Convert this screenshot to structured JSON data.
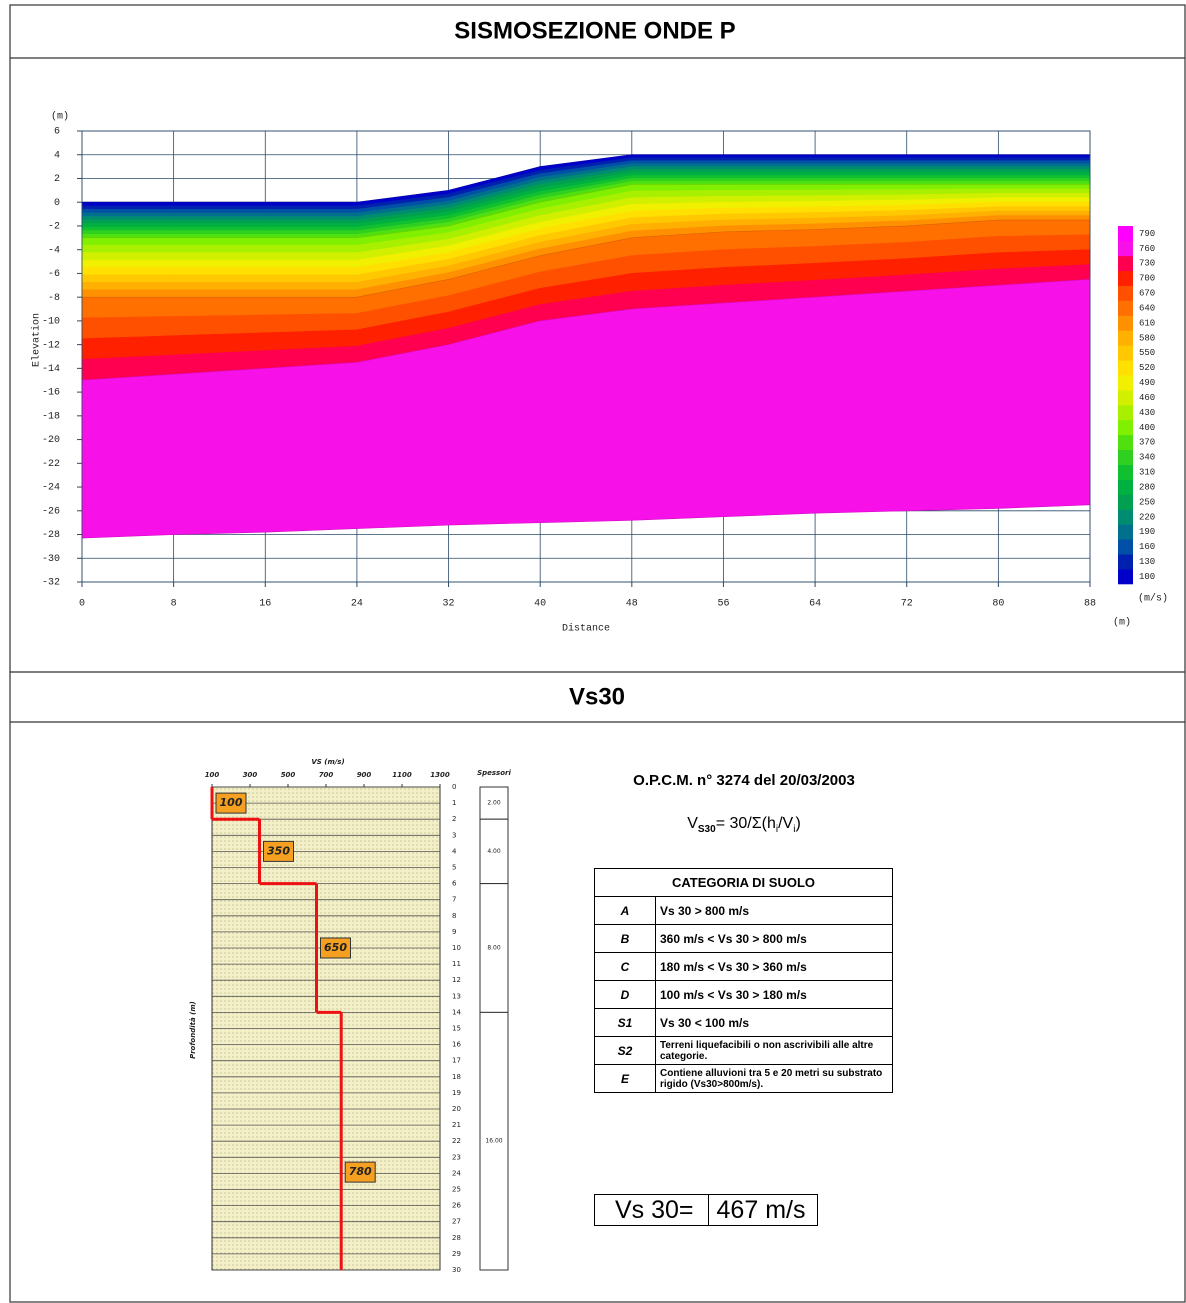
{
  "header": {
    "title": "SISMOSEZIONE ONDE P"
  },
  "section2": {
    "title": "Vs30"
  },
  "chart_data": [
    {
      "type": "section",
      "x_label": "Distance",
      "y_label": "Elevation",
      "y_unit": "(m)",
      "x_unit": "(m)",
      "colorbar_unit": "(m/s)",
      "x": [
        0,
        8,
        16,
        24,
        32,
        40,
        48,
        56,
        64,
        72,
        80,
        88
      ],
      "contours": [
        {
          "value": 100,
          "y": [
            0,
            0,
            0,
            0,
            1,
            3,
            4,
            4,
            4,
            4,
            4,
            4
          ]
        },
        {
          "value": 400,
          "y": [
            -3,
            -3,
            -3,
            -3,
            -2,
            0,
            1.5,
            1.5,
            1.5,
            1.5,
            1.5,
            1.5
          ]
        },
        {
          "value": 640,
          "y": [
            -8,
            -8,
            -8,
            -8,
            -6.5,
            -4.5,
            -3,
            -2.5,
            -2.3,
            -2,
            -1.5,
            -1.5
          ]
        },
        {
          "value": 760,
          "y": [
            -15,
            -14.5,
            -14,
            -13.5,
            -12,
            -10,
            -9,
            -8.5,
            -8,
            -7.5,
            -7,
            -6.5
          ]
        },
        {
          "value": 790,
          "y": [
            -28.3,
            -28,
            -27.8,
            -27.5,
            -27.2,
            -27,
            -26.8,
            -26.5,
            -26.2,
            -26,
            -25.8,
            -25.5
          ]
        }
      ],
      "xlim": [
        0,
        88
      ],
      "xticks": [
        0,
        8,
        16,
        24,
        32,
        40,
        48,
        56,
        64,
        72,
        80,
        88
      ],
      "ylim": [
        -32,
        6
      ],
      "yticks": [
        -32,
        -30,
        -28,
        -26,
        -24,
        -22,
        -20,
        -18,
        -16,
        -14,
        -12,
        -10,
        -8,
        -6,
        -4,
        -2,
        0,
        2,
        4,
        6
      ],
      "grid": true,
      "colorbar_ticks": [
        100,
        130,
        160,
        190,
        220,
        250,
        280,
        310,
        340,
        370,
        400,
        430,
        460,
        490,
        520,
        550,
        580,
        610,
        640,
        670,
        700,
        730,
        760,
        790
      ],
      "colorbar_colors": [
        "#0000c8",
        "#0020b0",
        "#0050a8",
        "#00708c",
        "#008c70",
        "#00a050",
        "#00b040",
        "#10c030",
        "#30d020",
        "#50e010",
        "#80f000",
        "#a8f000",
        "#d0f000",
        "#f0f000",
        "#ffe000",
        "#ffc800",
        "#ffb000",
        "#ff9000",
        "#ff7000",
        "#ff5000",
        "#ff2000",
        "#ff0050",
        "#f810e8",
        "#ff00ff"
      ]
    },
    {
      "type": "step",
      "x_label": "VS (m/s)",
      "y_label": "Profondità (m)",
      "thickness_title": "Spessori",
      "values": [
        100,
        350,
        650,
        780
      ],
      "thickness": [
        2,
        4,
        8,
        16
      ],
      "thickness_labels": [
        "2.00",
        "4.00",
        "8.00",
        "16.00"
      ],
      "color": "#ee1111",
      "xlim": [
        100,
        1300
      ],
      "xticks": [
        100,
        300,
        500,
        700,
        900,
        1100,
        1300
      ],
      "ylim": [
        0,
        30
      ],
      "yticks": [
        0,
        1,
        2,
        3,
        4,
        5,
        6,
        7,
        8,
        9,
        10,
        11,
        12,
        13,
        14,
        15,
        16,
        17,
        18,
        19,
        20,
        21,
        22,
        23,
        24,
        25,
        26,
        27,
        28,
        29,
        30
      ],
      "invert_y": true
    }
  ],
  "norm": {
    "title": "O.P.C.M. n° 3274 del 20/03/2003"
  },
  "formula": {
    "v": "V",
    "sub": "S30",
    "rest": "= 30/Σ(h",
    "i1": "i",
    "mid": "/V",
    "i2": "i",
    "end": ")"
  },
  "table": {
    "header": "CATEGORIA DI SUOLO",
    "rows": [
      [
        "A",
        "Vs 30 > 800 m/s"
      ],
      [
        "B",
        "360 m/s < Vs 30 > 800 m/s"
      ],
      [
        "C",
        "180 m/s < Vs 30 > 360 m/s"
      ],
      [
        "D",
        "100 m/s < Vs 30 > 180 m/s"
      ],
      [
        "S1",
        "Vs 30 < 100 m/s"
      ],
      [
        "S2",
        "Terreni liquefacibili o non ascrivibili alle altre categorie."
      ],
      [
        "E",
        "Contiene alluvioni tra 5 e 20 metri su substrato rigido (Vs30>800m/s)."
      ]
    ]
  },
  "result": {
    "label": "Vs 30=",
    "value": "467 m/s"
  }
}
